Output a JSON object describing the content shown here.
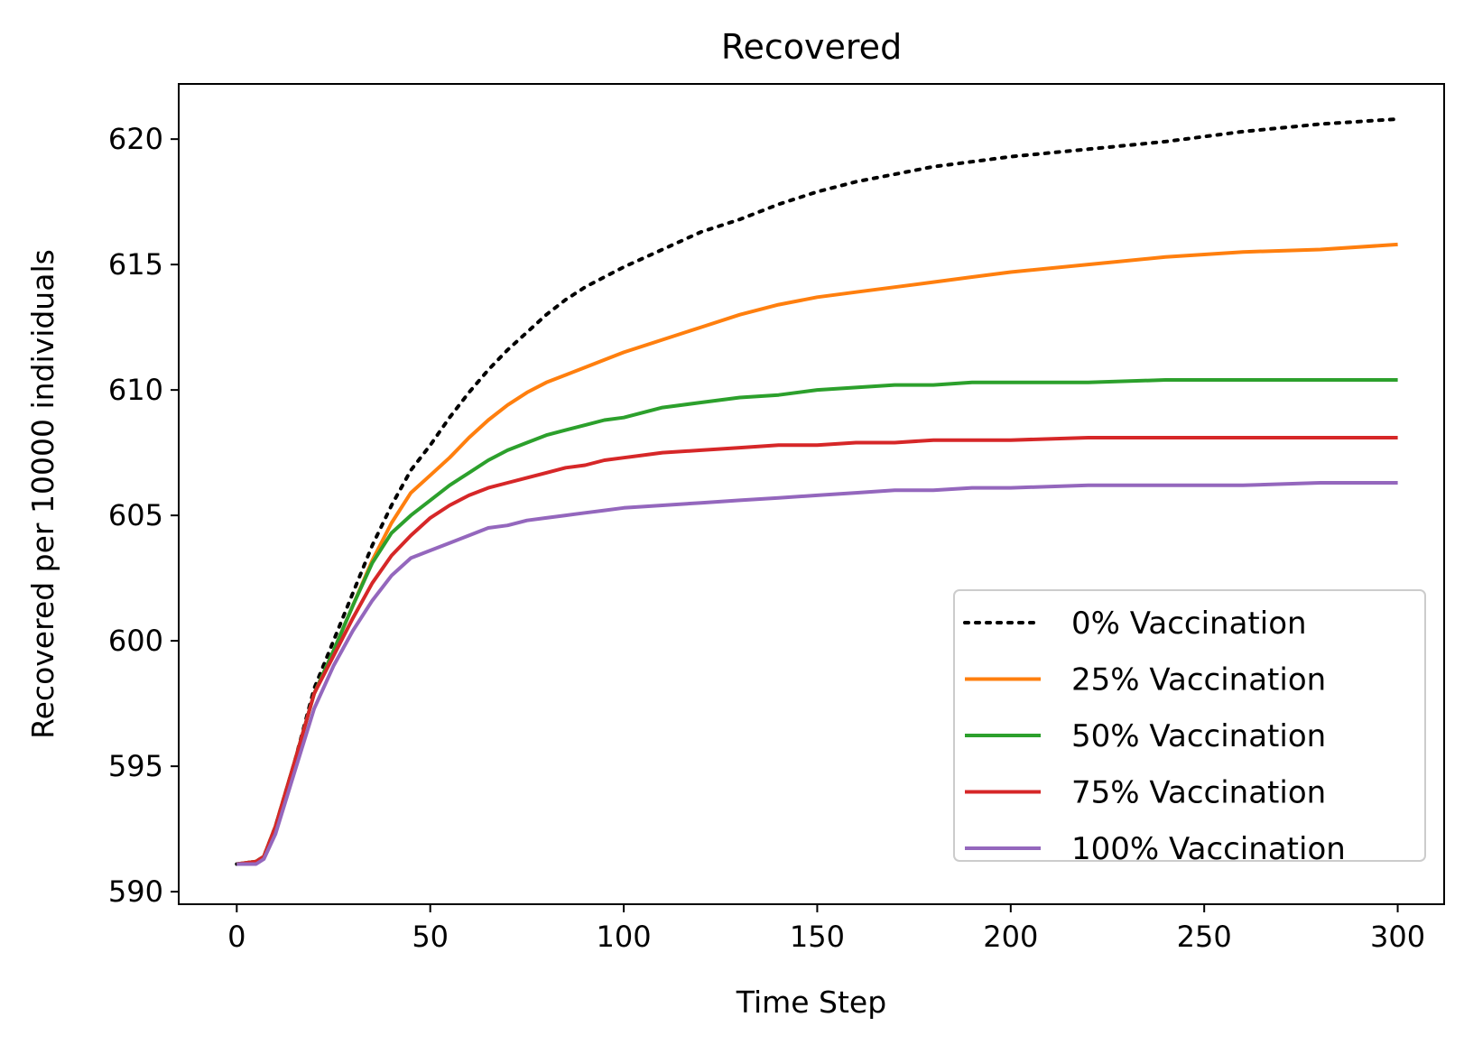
{
  "chart_data": {
    "type": "line",
    "title": "Recovered",
    "xlabel": "Time Step",
    "ylabel": "Recovered per 10000 individuals",
    "xlim": [
      -15,
      312
    ],
    "ylim": [
      589.5,
      622.2
    ],
    "xticks": [
      0,
      50,
      100,
      150,
      200,
      250,
      300
    ],
    "yticks": [
      590,
      595,
      600,
      605,
      610,
      615,
      620
    ],
    "grid": false,
    "legend_position": "lower-right",
    "series": [
      {
        "name": "0% Vaccination",
        "color": "#000000",
        "style": "dotted",
        "x": [
          0,
          5,
          7,
          10,
          15,
          20,
          25,
          30,
          35,
          40,
          45,
          50,
          55,
          60,
          65,
          70,
          75,
          80,
          85,
          90,
          95,
          100,
          110,
          120,
          130,
          140,
          150,
          160,
          170,
          180,
          190,
          200,
          220,
          240,
          260,
          280,
          300
        ],
        "y": [
          591.1,
          591.2,
          591.4,
          592.6,
          595.2,
          598.1,
          600.0,
          601.9,
          603.8,
          605.4,
          606.8,
          607.8,
          608.9,
          609.9,
          610.8,
          611.6,
          612.3,
          613.0,
          613.6,
          614.1,
          614.5,
          614.9,
          615.6,
          616.3,
          616.8,
          617.4,
          617.9,
          618.3,
          618.6,
          618.9,
          619.1,
          619.3,
          619.6,
          619.9,
          620.3,
          620.6,
          620.8
        ]
      },
      {
        "name": "25% Vaccination",
        "color": "#ff7f0e",
        "style": "solid",
        "x": [
          0,
          5,
          7,
          10,
          15,
          20,
          25,
          30,
          35,
          40,
          45,
          50,
          55,
          60,
          65,
          70,
          75,
          80,
          85,
          90,
          95,
          100,
          110,
          120,
          130,
          140,
          150,
          160,
          170,
          180,
          190,
          200,
          220,
          240,
          260,
          280,
          300
        ],
        "y": [
          591.1,
          591.2,
          591.4,
          592.6,
          595.2,
          597.9,
          599.6,
          601.4,
          603.2,
          604.7,
          605.9,
          606.6,
          607.3,
          608.1,
          608.8,
          609.4,
          609.9,
          610.3,
          610.6,
          610.9,
          611.2,
          611.5,
          612.0,
          612.5,
          613.0,
          613.4,
          613.7,
          613.9,
          614.1,
          614.3,
          614.5,
          614.7,
          615.0,
          615.3,
          615.5,
          615.6,
          615.8
        ]
      },
      {
        "name": "50% Vaccination",
        "color": "#2ca02c",
        "style": "solid",
        "x": [
          0,
          5,
          7,
          10,
          15,
          20,
          25,
          30,
          35,
          40,
          45,
          50,
          55,
          60,
          65,
          70,
          75,
          80,
          85,
          90,
          95,
          100,
          110,
          120,
          130,
          140,
          150,
          160,
          170,
          180,
          190,
          200,
          220,
          240,
          260,
          280,
          300
        ],
        "y": [
          591.1,
          591.2,
          591.4,
          592.6,
          595.2,
          597.9,
          599.6,
          601.4,
          603.1,
          604.3,
          605.0,
          605.6,
          606.2,
          606.7,
          607.2,
          607.6,
          607.9,
          608.2,
          608.4,
          608.6,
          608.8,
          608.9,
          609.3,
          609.5,
          609.7,
          609.8,
          610.0,
          610.1,
          610.2,
          610.2,
          610.3,
          610.3,
          610.3,
          610.4,
          610.4,
          610.4,
          610.4
        ]
      },
      {
        "name": "75% Vaccination",
        "color": "#d62728",
        "style": "solid",
        "x": [
          0,
          5,
          7,
          10,
          15,
          20,
          25,
          30,
          35,
          40,
          45,
          50,
          55,
          60,
          65,
          70,
          75,
          80,
          85,
          90,
          95,
          100,
          110,
          120,
          130,
          140,
          150,
          160,
          170,
          180,
          190,
          200,
          220,
          240,
          260,
          280,
          300
        ],
        "y": [
          591.1,
          591.2,
          591.4,
          592.6,
          595.2,
          597.9,
          599.4,
          600.9,
          602.3,
          603.4,
          604.2,
          604.9,
          605.4,
          605.8,
          606.1,
          606.3,
          606.5,
          606.7,
          606.9,
          607.0,
          607.2,
          607.3,
          607.5,
          607.6,
          607.7,
          607.8,
          607.8,
          607.9,
          607.9,
          608.0,
          608.0,
          608.0,
          608.1,
          608.1,
          608.1,
          608.1,
          608.1
        ]
      },
      {
        "name": "100% Vaccination",
        "color": "#9467bd",
        "style": "solid",
        "x": [
          0,
          5,
          7,
          10,
          15,
          20,
          25,
          30,
          35,
          40,
          45,
          50,
          55,
          60,
          65,
          70,
          75,
          80,
          85,
          90,
          95,
          100,
          110,
          120,
          130,
          140,
          150,
          160,
          170,
          180,
          190,
          200,
          220,
          240,
          260,
          280,
          300
        ],
        "y": [
          591.1,
          591.1,
          591.3,
          592.3,
          594.8,
          597.3,
          599.0,
          600.4,
          601.6,
          602.6,
          603.3,
          603.6,
          603.9,
          604.2,
          604.5,
          604.6,
          604.8,
          604.9,
          605.0,
          605.1,
          605.2,
          605.3,
          605.4,
          605.5,
          605.6,
          605.7,
          605.8,
          605.9,
          606.0,
          606.0,
          606.1,
          606.1,
          606.2,
          606.2,
          606.2,
          606.3,
          606.3
        ]
      }
    ]
  }
}
